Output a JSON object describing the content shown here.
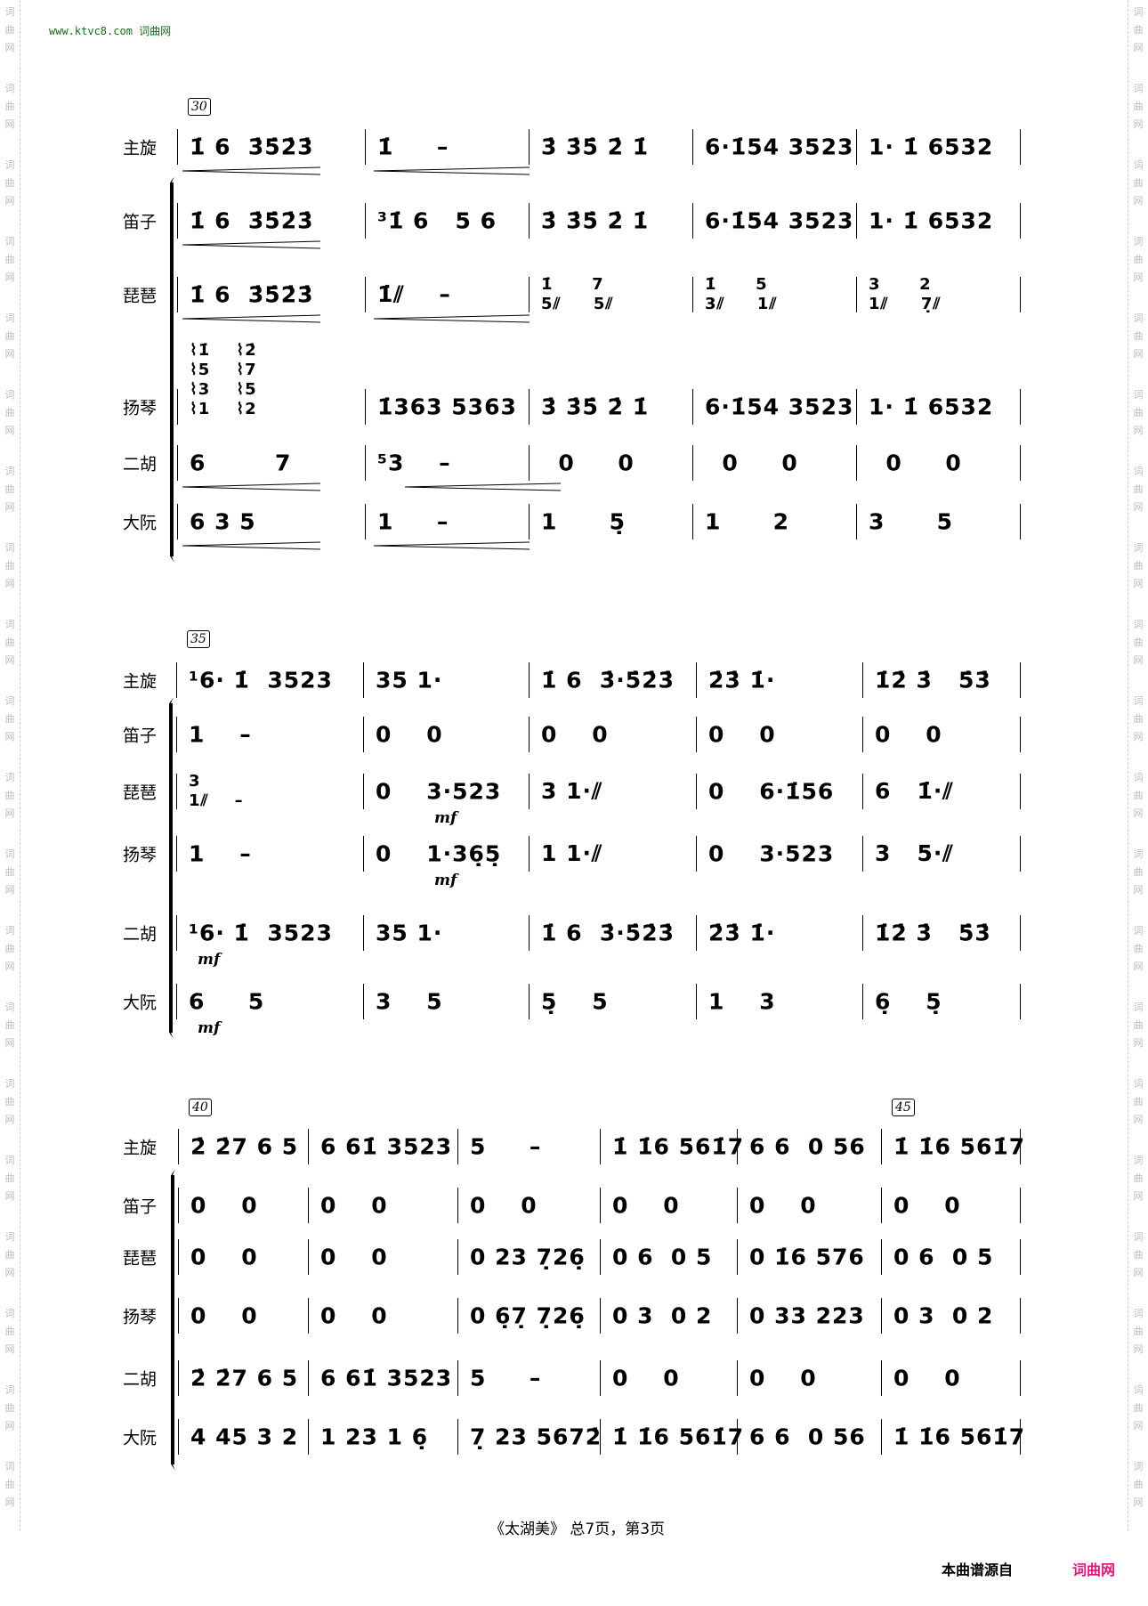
{
  "watermark": "词曲网",
  "header": {
    "site": "www.ktvc8.com 词曲网"
  },
  "instruments": [
    "主旋",
    "笛子",
    "琵琶",
    "扬琴",
    "二胡",
    "大阮"
  ],
  "systems": [
    {
      "measure_numbers": [
        {
          "measure_index": 0,
          "label": "30"
        }
      ],
      "rows": [
        {
          "measures": [
            "1̇ 6  3̇5̇2̇3̇",
            "1̇     –",
            "3̇ 3̇5̇ 2̇ 1̇",
            "6·1̇54 3523",
            "1· 1̇ 6532"
          ]
        },
        {
          "measures": [
            "1̇ 6  3̇5̇2̇3̇",
            "³1̇ 6   5 6",
            "3̇ 3̇5̇ 2̇ 1̇",
            "6·1̇54 3523",
            "1· 1̇ 6532"
          ]
        },
        {
          "measures": [
            "1̇ 6  3̇5̇2̇3̇",
            "1̇⫽    –",
            "1̇      7\n5⫽     5⫽",
            "1̇      5\n3⫽     1⫽",
            "3      2\n1⫽     7̣⫽"
          ]
        },
        {
          "measures": [
            "⌇1̇    ⌇2̇\n⌇5    ⌇7\n⌇3    ⌇5\n⌇1    ⌇2",
            "1̇363 5363",
            "3̇ 3̇5̇ 2̇ 1̇",
            "6·1̇54 3523",
            "1· 1̇ 6532"
          ]
        },
        {
          "measures": [
            "6        7",
            "⁵3    –",
            "  0     0",
            "  0     0",
            "  0     0"
          ]
        },
        {
          "measures": [
            "6 3 5",
            "1     –",
            "1      5̣",
            "1      2",
            "3      5"
          ]
        }
      ],
      "dynamics": []
    },
    {
      "measure_numbers": [
        {
          "measure_index": 0,
          "label": "35"
        }
      ],
      "rows": [
        {
          "measures": [
            "¹6· 1̇  3523",
            "35 1·",
            "1̇ 6  3̇·5̇2̇3̇",
            "2̇3̇ 1̇·",
            "1̇2̇ 3̇   5̇3̇"
          ]
        },
        {
          "measures": [
            "1    –",
            "0    0",
            "0    0",
            "0    0",
            "0    0"
          ]
        },
        {
          "measures": [
            "3\n1⫽    –",
            "0    3·523",
            "3 1·⫽",
            "0    6·1̇56",
            "6   1̇·⫽"
          ]
        },
        {
          "measures": [
            "1    –",
            "0    1·36̣5̣",
            "1 1·⫽",
            "0    3·523",
            "3   5·⫽"
          ]
        },
        {
          "measures": [
            "¹6· 1̇  3523",
            "35 1·",
            "1̇ 6  3̇·5̇2̇3̇",
            "2̇3̇ 1̇·",
            "1̇2̇ 3̇   5̇3̇"
          ]
        },
        {
          "measures": [
            "6     5",
            "3    5",
            "5̣    5",
            "1    3",
            "6̣    5̣"
          ]
        }
      ],
      "dynamics": [
        {
          "row": 2,
          "measure_index": 1,
          "text": "mf"
        },
        {
          "row": 3,
          "measure_index": 1,
          "text": "mf"
        },
        {
          "row": 4,
          "measure_index": 0,
          "text": "mf"
        },
        {
          "row": 5,
          "measure_index": 0,
          "text": "mf"
        }
      ]
    },
    {
      "measure_numbers": [
        {
          "measure_index": 0,
          "label": "40"
        },
        {
          "measure_index": 5,
          "label": "45"
        }
      ],
      "rows": [
        {
          "measures": [
            "2̇ 2̇7 6 5",
            "6 61̇ 3523",
            "5     –",
            "1̇ 1̇6 561̇7",
            "6 6  0 56",
            "1̇ 1̇6 561̇7"
          ]
        },
        {
          "measures": [
            "0    0",
            "0    0",
            "0    0",
            "0    0",
            "0    0",
            "0    0"
          ]
        },
        {
          "measures": [
            "0    0",
            "0    0",
            "0 23 7̣26̣",
            "0 6  0 5",
            "0 1̇6 576",
            "0 6  0 5"
          ]
        },
        {
          "measures": [
            "0    0",
            "0    0",
            "0 6̣7̣ 7̣26̣",
            "0 3  0 2",
            "0 33 223",
            "0 3  0 2"
          ]
        },
        {
          "measures": [
            "2̇ 2̇7 6 5",
            "6 61̇ 3523",
            "5     –",
            "0    0",
            "0    0",
            "0    0"
          ]
        },
        {
          "measures": [
            "4 45 3 2",
            "1 23 1 6̣",
            "7̣ 23 5672̇",
            "1̇ 1̇6 561̇7",
            "6 6  0 56",
            "1̇ 1̇6 561̇7"
          ]
        }
      ],
      "dynamics": []
    }
  ],
  "footer": {
    "page_info": "《太湖美》 总7页，第3页",
    "source_label": "本曲谱源自",
    "source_site": "词曲网",
    "source_color": "#e8157a"
  }
}
